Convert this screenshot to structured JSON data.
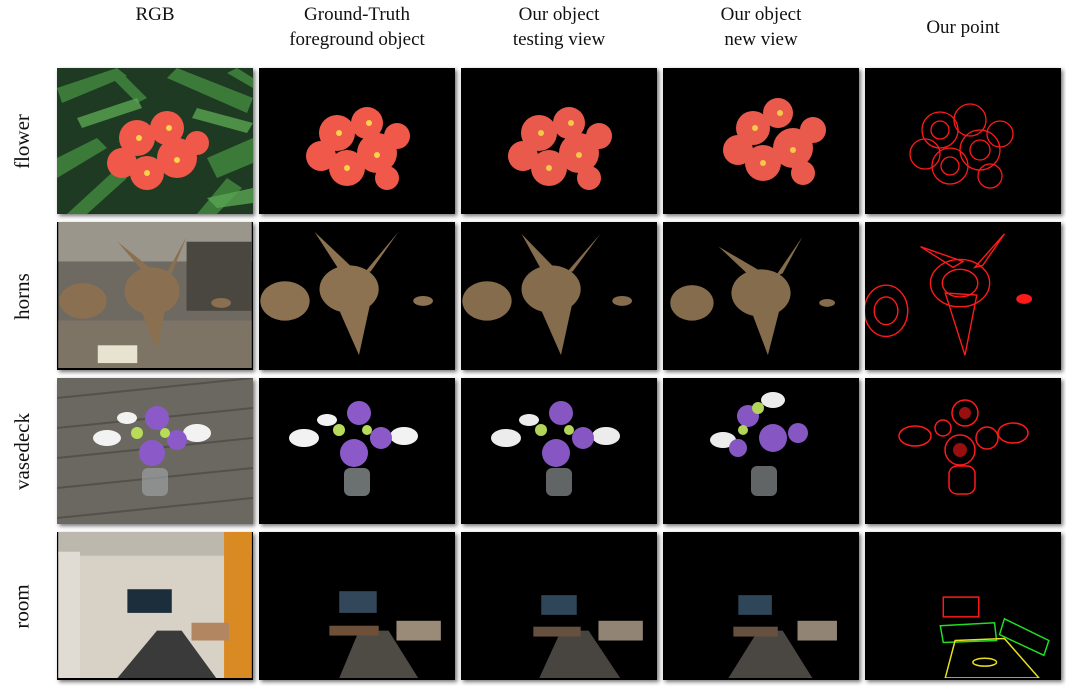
{
  "figure": {
    "columns": [
      {
        "id": "rgb",
        "label": "RGB"
      },
      {
        "id": "gt",
        "label": "Ground-Truth\nforeground object"
      },
      {
        "id": "test",
        "label": "Our object\ntesting view"
      },
      {
        "id": "new",
        "label": "Our object\nnew view"
      },
      {
        "id": "point",
        "label": "Our point"
      }
    ],
    "rows": [
      {
        "id": "flower",
        "label": "flower"
      },
      {
        "id": "horns",
        "label": "horns"
      },
      {
        "id": "vasedeck",
        "label": "vasedeck"
      },
      {
        "id": "room",
        "label": "room"
      }
    ]
  },
  "colors": {
    "background": "#000000",
    "flower": "#f0584a",
    "point_red": "#ff1a1a",
    "point_green": "#22dd22",
    "point_yellow": "#e8e020"
  }
}
